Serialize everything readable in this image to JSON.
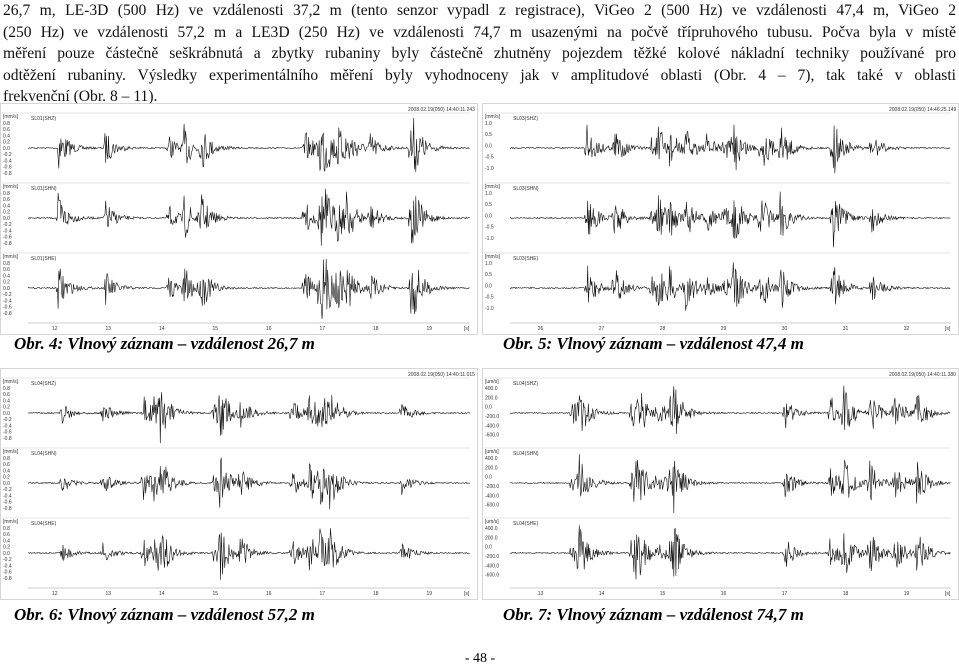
{
  "paragraph": [
    "26,7 m, LE-3D (500 Hz) ve vzdálenosti 37,2 m (tento senzor vypadl z registrace), ViGeo 2 (500 Hz) ve vzdálenosti 47,4 m, ViGeo 2",
    "(250 Hz) ve vzdálenosti 57,2 m a LE3D (250 Hz) ve vzdálenosti 74,7 m  usazenými na počvě třípruhového tubusu. Počva byla v místě",
    "měření pouze částečně seškrábnutá a zbytky rubaniny byly částečně zhutněny pojezdem těžké kolové nákladní techniky používané pro",
    "odtěžení rubaniny. Výsledky experimentálního měření byly vyhodnoceny jak v amplitudové oblasti (Obr. 4 – 7), tak také v oblasti",
    "frekvenční (Obr. 8 – 11)."
  ],
  "figures": [
    {
      "caption": "Obr. 4: Vlnový záznam – vzdálenost 26,7 m",
      "timestamp": "2008.02.19(050) 14:40:11.243",
      "unit": "[mm/s]",
      "channels": [
        "SL01(SHZ)",
        "SL01(SHN)",
        "SL01(SHE)"
      ],
      "yticks": [
        "0.8",
        "0.6",
        "0.4",
        "0.2",
        "0.0",
        "-0.2",
        "-0.4",
        "-0.6",
        "-0.8"
      ],
      "xticks": [
        "12",
        "13",
        "14",
        "15",
        "16",
        "17",
        "18",
        "19"
      ],
      "xunit": "[s]"
    },
    {
      "caption": "Obr. 5: Vlnový záznam – vzdálenost 47,4 m",
      "timestamp": "2008.02.19(050) 14:46:25.149",
      "unit": "[mm/s]",
      "channels": [
        "SL03(SHZ)",
        "SL03(SHN)",
        "SL03(SHE)"
      ],
      "yticks": [
        "1.0",
        "0.5",
        "0.0",
        "-0.5",
        "-1.0"
      ],
      "xticks": [
        "26",
        "27",
        "28",
        "29",
        "30",
        "31",
        "32"
      ],
      "xunit": "[s]"
    },
    {
      "caption": "Obr. 6: Vlnový záznam – vzdálenost 57,2 m",
      "timestamp": "2008.02.19(050) 14:40:11.015",
      "unit": "[mm/s]",
      "channels": [
        "SL04(SHZ)",
        "SL04(SHN)",
        "SL04(SHE)"
      ],
      "yticks": [
        "0.8",
        "0.6",
        "0.4",
        "0.2",
        "0.0",
        "-0.2",
        "-0.4",
        "-0.6",
        "-0.8"
      ],
      "xticks": [
        "12",
        "13",
        "14",
        "15",
        "16",
        "17",
        "18",
        "19"
      ],
      "xunit": "[s]"
    },
    {
      "caption": "Obr. 7: Vlnový záznam – vzdálenost 74,7 m",
      "timestamp": "2008.02.19(050) 14:40:11.380",
      "unit": "[um/s]",
      "channels": [
        "SL04(SHZ)",
        "SL04(SHN)",
        "SL04(SHE)"
      ],
      "yticks": [
        "400.0",
        "200.0",
        "0.0",
        "-200.0",
        "-400.0",
        "-600.0"
      ],
      "xticks": [
        "13",
        "14",
        "15",
        "16",
        "17",
        "18",
        "19"
      ],
      "xunit": "[s]"
    }
  ],
  "page_number": "- 48 -"
}
